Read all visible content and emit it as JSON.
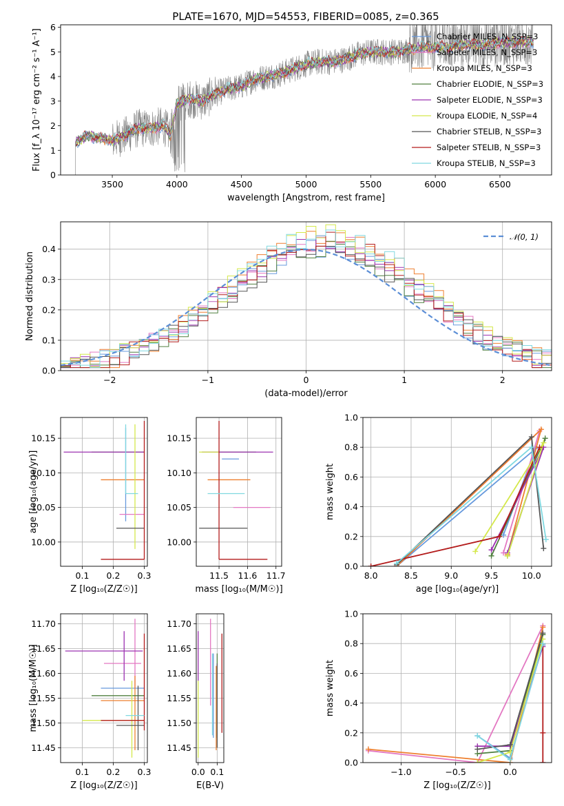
{
  "figure": {
    "title": "PLATE=1670, MJD=54553, FIBERID=0085, z=0.365"
  },
  "colors": {
    "chabrier_miles": "#6699dd",
    "salpeter_miles": "#e377c2",
    "kroupa_miles": "#ee7f2e",
    "chabrier_elodie": "#4f7f3f",
    "salpeter_elodie": "#9b30b0",
    "kroupa_elodie": "#d4e84a",
    "chabrier_stelib": "#555555",
    "salpeter_stelib": "#b31b1b",
    "kroupa_stelib": "#7fd8e0",
    "data": "#808080",
    "gaussian": "#5b8ed6"
  },
  "chart_data": [
    {
      "type": "line",
      "xlabel": "wavelength [Angstrom, rest frame]",
      "ylabel": "Flux [f_λ 10⁻¹⁷ erg cm⁻² s⁻¹ A⁻¹]",
      "xlim": [
        3100,
        6900
      ],
      "ylim": [
        0,
        6.1
      ],
      "xticks": [
        3500,
        4000,
        4500,
        5000,
        5500,
        6000,
        6500
      ],
      "yticks": [
        0,
        1,
        2,
        3,
        4,
        5,
        6
      ],
      "grid": false,
      "legend_position": "right",
      "continuum_x": [
        3215,
        3300,
        3400,
        3500,
        3600,
        3700,
        3800,
        3900,
        3950,
        4000,
        4100,
        4200,
        4300,
        4400,
        4500,
        4600,
        4700,
        4800,
        4900,
        5000,
        5100,
        5200,
        5300,
        5400,
        5500,
        5600,
        5700,
        5800,
        5900,
        6000,
        6100,
        6200,
        6300,
        6400,
        6500,
        6600,
        6750
      ],
      "continuum_y": [
        1.3,
        1.6,
        1.5,
        1.4,
        1.6,
        1.9,
        1.9,
        2.0,
        1.6,
        2.9,
        3.1,
        3.0,
        3.3,
        3.5,
        3.6,
        3.9,
        4.0,
        4.1,
        4.3,
        4.5,
        4.6,
        4.6,
        4.7,
        4.9,
        5.0,
        5.0,
        5.0,
        5.1,
        5.2,
        5.2,
        5.2,
        5.3,
        5.3,
        5.3,
        5.4,
        5.4,
        5.4
      ],
      "series": [
        {
          "name": "Chabrier MILES, N_SSP=3"
        },
        {
          "name": "Salpeter MILES, N_SSP=3"
        },
        {
          "name": "Kroupa MILES, N_SSP=3"
        },
        {
          "name": "Chabrier ELODIE, N_SSP=3"
        },
        {
          "name": "Salpeter ELODIE, N_SSP=3"
        },
        {
          "name": "Kroupa ELODIE, N_SSP=4"
        },
        {
          "name": "Chabrier STELIB, N_SSP=3"
        },
        {
          "name": "Salpeter STELIB, N_SSP=3"
        },
        {
          "name": "Kroupa STELIB, N_SSP=3"
        }
      ]
    },
    {
      "type": "histogram",
      "xlabel": "(data-model)/error",
      "ylabel": "Normed distribution",
      "xlim": [
        -2.5,
        2.5
      ],
      "ylim": [
        0,
        0.49
      ],
      "xticks": [
        -2,
        -1,
        0,
        1,
        2
      ],
      "yticks": [
        0.0,
        0.1,
        0.2,
        0.3,
        0.4
      ],
      "grid": true,
      "legend_position": "top-right",
      "bin_width": 0.1,
      "gaussian_label": "𝒩(0, 1)"
    },
    {
      "type": "errorbar",
      "xlabel": "Z [log₁₀(Z/Z☉)]",
      "ylabel": "age  [log₁₀(age/yr)]",
      "xlim": [
        0.03,
        0.31
      ],
      "ylim": [
        9.965,
        10.18
      ],
      "xticks": [
        0.1,
        0.2,
        0.3
      ],
      "yticks": [
        10.0,
        10.05,
        10.1,
        10.15
      ],
      "points": [
        {
          "x": 0.24,
          "y": 10.12,
          "xerr": [
            0.0,
            0.0
          ],
          "yerr": [
            0.09,
            0.045
          ]
        },
        {
          "x": 0.28,
          "y": 10.04,
          "xerr": [
            0.06,
            0.02
          ],
          "yerr": [
            0.0,
            0.0
          ]
        },
        {
          "x": 0.27,
          "y": 10.09,
          "xerr": [
            0.11,
            0.03
          ],
          "yerr": [
            0.0,
            0.0
          ]
        },
        {
          "x": 0.27,
          "y": 10.13,
          "xerr": [
            0.14,
            0.03
          ],
          "yerr": [
            0.0,
            0.0
          ]
        },
        {
          "x": 0.27,
          "y": 10.13,
          "xerr": [
            0.23,
            0.03
          ],
          "yerr": [
            0.0,
            0.0
          ]
        },
        {
          "x": 0.27,
          "y": 10.14,
          "xerr": [
            0.0,
            0.0
          ],
          "yerr": [
            0.15,
            0.03
          ]
        },
        {
          "x": 0.28,
          "y": 10.02,
          "xerr": [
            0.07,
            0.02
          ],
          "yerr": [
            0.0,
            0.0
          ]
        },
        {
          "x": 0.3,
          "y": 9.975,
          "xerr": [
            0.14,
            0.0
          ],
          "yerr": [
            0.0,
            0.2
          ]
        },
        {
          "x": 0.24,
          "y": 10.07,
          "xerr": [
            0.0,
            0.04
          ],
          "yerr": [
            0.0,
            0.1
          ]
        }
      ]
    },
    {
      "type": "errorbar",
      "xlabel": "mass [log₁₀(M/M☉)]",
      "ylabel": "",
      "xlim": [
        11.42,
        11.72
      ],
      "ylim": [
        9.965,
        10.18
      ],
      "xticks": [
        11.5,
        11.6,
        11.7
      ],
      "yticks": [
        10.0,
        10.05,
        10.1,
        10.15
      ],
      "points": [
        {
          "x": 11.57,
          "y": 10.12,
          "xerr": [
            0.06,
            0.0
          ],
          "yerr": [
            0.0,
            0.0
          ]
        },
        {
          "x": 11.62,
          "y": 10.05,
          "xerr": [
            0.07,
            0.06
          ],
          "yerr": [
            0.0,
            0.0
          ]
        },
        {
          "x": 11.55,
          "y": 10.09,
          "xerr": [
            0.09,
            0.06
          ],
          "yerr": [
            0.0,
            0.0
          ]
        },
        {
          "x": 11.54,
          "y": 10.13,
          "xerr": [
            0.1,
            0.09
          ],
          "yerr": [
            0.0,
            0.0
          ]
        },
        {
          "x": 11.64,
          "y": 10.13,
          "xerr": [
            0.2,
            0.05
          ],
          "yerr": [
            0.0,
            0.0
          ]
        },
        {
          "x": 11.5,
          "y": 10.13,
          "xerr": [
            0.07,
            0.0
          ],
          "yerr": [
            0.0,
            0.0
          ]
        },
        {
          "x": 11.5,
          "y": 10.02,
          "xerr": [
            0.07,
            0.1
          ],
          "yerr": [
            0.0,
            0.0
          ]
        },
        {
          "x": 11.5,
          "y": 9.975,
          "xerr": [
            0.0,
            0.17
          ],
          "yerr": [
            0.0,
            0.2
          ]
        },
        {
          "x": 11.53,
          "y": 10.07,
          "xerr": [
            0.07,
            0.06
          ],
          "yerr": [
            0.0,
            0.0
          ]
        }
      ]
    },
    {
      "type": "line",
      "xlabel": "age  [log₁₀(age/yr)]",
      "ylabel": "mass weight",
      "xlim": [
        7.9,
        10.25
      ],
      "ylim": [
        0,
        1.0
      ],
      "xticks": [
        8.0,
        8.5,
        9.0,
        9.5,
        10.0
      ],
      "yticks": [
        0.0,
        0.2,
        0.4,
        0.6,
        0.8,
        1.0
      ],
      "grid": true,
      "series": [
        {
          "x": [
            8.32,
            10.05,
            9.65
          ],
          "y": [
            0.0,
            0.79,
            0.21
          ]
        },
        {
          "x": [
            8.32,
            10.1,
            9.65
          ],
          "y": [
            0.0,
            0.91,
            0.09
          ]
        },
        {
          "x": [
            8.32,
            10.12,
            9.7
          ],
          "y": [
            0.0,
            0.92,
            0.08
          ]
        },
        {
          "x": [
            9.7,
            10.17,
            9.5
          ],
          "y": [
            0.07,
            0.86,
            0.07
          ]
        },
        {
          "x": [
            9.5,
            10.15,
            9.7
          ],
          "y": [
            0.11,
            0.8,
            0.09
          ]
        },
        {
          "x": [
            9.3,
            10.15,
            9.7
          ],
          "y": [
            0.1,
            0.83,
            0.07
          ]
        },
        {
          "x": [
            8.32,
            10.0,
            10.15
          ],
          "y": [
            0.01,
            0.87,
            0.12
          ]
        },
        {
          "x": [
            8.0,
            9.6,
            10.1
          ],
          "y": [
            0.0,
            0.2,
            0.8
          ]
        },
        {
          "x": [
            8.32,
            10.0,
            10.18
          ],
          "y": [
            0.02,
            0.8,
            0.18
          ]
        }
      ]
    },
    {
      "type": "errorbar",
      "xlabel": "Z [log₁₀(Z/Z☉)]",
      "ylabel": "mass [log₁₀(M/M☉)]",
      "xlim": [
        0.03,
        0.31
      ],
      "ylim": [
        11.42,
        11.72
      ],
      "xticks": [
        0.1,
        0.2,
        0.3
      ],
      "yticks": [
        11.45,
        11.5,
        11.55,
        11.6,
        11.65,
        11.7
      ],
      "points": [
        {
          "x": 0.24,
          "y": 11.57,
          "xerr": [
            0.08,
            0.06
          ],
          "yerr": [
            0.0,
            0.0
          ]
        },
        {
          "x": 0.27,
          "y": 11.62,
          "xerr": [
            0.1,
            0.02
          ],
          "yerr": [
            0.05,
            0.09
          ]
        },
        {
          "x": 0.27,
          "y": 11.545,
          "xerr": [
            0.11,
            0.03
          ],
          "yerr": [
            0.1,
            0.05
          ]
        },
        {
          "x": 0.27,
          "y": 11.555,
          "xerr": [
            0.14,
            0.03
          ],
          "yerr": [
            0.0,
            0.0
          ]
        },
        {
          "x": 0.235,
          "y": 11.645,
          "xerr": [
            0.19,
            0.06
          ],
          "yerr": [
            0.06,
            0.04
          ]
        },
        {
          "x": 0.26,
          "y": 11.505,
          "xerr": [
            0.16,
            0.04
          ],
          "yerr": [
            0.075,
            0.08
          ]
        },
        {
          "x": 0.28,
          "y": 11.495,
          "xerr": [
            0.07,
            0.02
          ],
          "yerr": [
            0.05,
            0.08
          ]
        },
        {
          "x": 0.3,
          "y": 11.505,
          "xerr": [
            0.14,
            0.0
          ],
          "yerr": [
            0.02,
            0.175
          ]
        },
        {
          "x": 0.24,
          "y": 11.515,
          "xerr": [
            0.0,
            0.06
          ],
          "yerr": [
            0.0,
            0.0
          ]
        }
      ]
    },
    {
      "type": "errorbar",
      "xlabel": "E(B-V)",
      "ylabel": "",
      "xlim": [
        -0.01,
        0.135
      ],
      "ylim": [
        11.42,
        11.72
      ],
      "xticks": [
        0.0,
        0.1
      ],
      "yticks": [
        11.45,
        11.5,
        11.55,
        11.6,
        11.65,
        11.7
      ],
      "points": [
        {
          "x": 0.08,
          "y": 11.555,
          "yerr": [
            0.085,
            0.085
          ]
        },
        {
          "x": 0.065,
          "y": 11.62,
          "yerr": [
            0.085,
            0.09
          ]
        },
        {
          "x": 0.095,
          "y": 11.53,
          "yerr": [
            0.085,
            0.085
          ]
        },
        {
          "x": 0.1,
          "y": 11.555,
          "yerr": [
            0.085,
            0.085
          ]
        },
        {
          "x": 0.0,
          "y": 11.635,
          "yerr": [
            0.05,
            0.05
          ]
        },
        {
          "x": 0.0,
          "y": 11.5,
          "yerr": [
            0.07,
            0.085
          ]
        },
        {
          "x": 0.1,
          "y": 11.535,
          "yerr": [
            0.085,
            0.085
          ]
        },
        {
          "x": 0.125,
          "y": 11.58,
          "yerr": [
            0.1,
            0.1
          ]
        },
        {
          "x": 0.075,
          "y": 11.56,
          "yerr": [
            0.085,
            0.08
          ]
        }
      ]
    },
    {
      "type": "line",
      "xlabel": "Z [log₁₀(Z/Z☉)]",
      "ylabel": "mass weight",
      "xlim": [
        -1.35,
        0.38
      ],
      "ylim": [
        0,
        1.0
      ],
      "xticks": [
        -1.0,
        -0.5,
        0.0
      ],
      "yticks": [
        0.0,
        0.2,
        0.4,
        0.6,
        0.8,
        1.0
      ],
      "grid": true,
      "series": [
        {
          "x": [
            -0.3,
            0.0,
            0.3
          ],
          "y": [
            0.18,
            0.03,
            0.79
          ]
        },
        {
          "x": [
            -1.3,
            -0.3,
            0.3
          ],
          "y": [
            0.08,
            0.0,
            0.92
          ]
        },
        {
          "x": [
            -1.3,
            0.0,
            0.3
          ],
          "y": [
            0.09,
            0.0,
            0.91
          ]
        },
        {
          "x": [
            -0.3,
            0.0,
            0.3
          ],
          "y": [
            0.06,
            0.08,
            0.86
          ]
        },
        {
          "x": [
            -0.3,
            0.0,
            0.3
          ],
          "y": [
            0.11,
            0.11,
            0.78
          ]
        },
        {
          "x": [
            -0.3,
            0.0,
            0.3
          ],
          "y": [
            0.0,
            0.07,
            0.83
          ]
        },
        {
          "x": [
            -0.3,
            0.0,
            0.3
          ],
          "y": [
            0.09,
            0.12,
            0.87
          ]
        },
        {
          "x": [
            0.3,
            0.3,
            0.3
          ],
          "y": [
            0.2,
            0.0,
            0.8
          ]
        },
        {
          "x": [
            -0.3,
            0.0,
            0.3
          ],
          "y": [
            0.18,
            0.02,
            0.8
          ]
        }
      ]
    }
  ]
}
